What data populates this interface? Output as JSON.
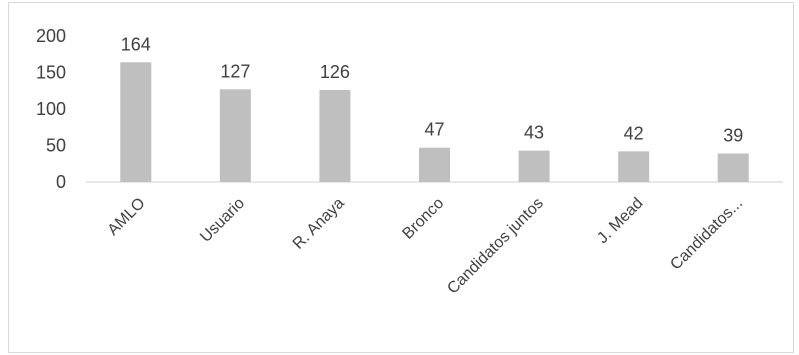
{
  "chart_data": {
    "type": "bar",
    "categories": [
      "AMLO",
      "Usuario",
      "R. Anaya",
      "Bronco",
      "Candidatos juntos",
      "J. Mead",
      "Candidatos..."
    ],
    "values": [
      164,
      127,
      126,
      47,
      43,
      42,
      39
    ],
    "title": "",
    "xlabel": "",
    "ylabel": "",
    "ylim": [
      0,
      200
    ],
    "yticks": [
      0,
      50,
      100,
      150,
      200
    ],
    "grid": false,
    "legend": "none",
    "data_labels": true,
    "colors": {
      "bar": "#bfbfbf",
      "axis": "#d9d9d9",
      "text": "#404040"
    }
  }
}
